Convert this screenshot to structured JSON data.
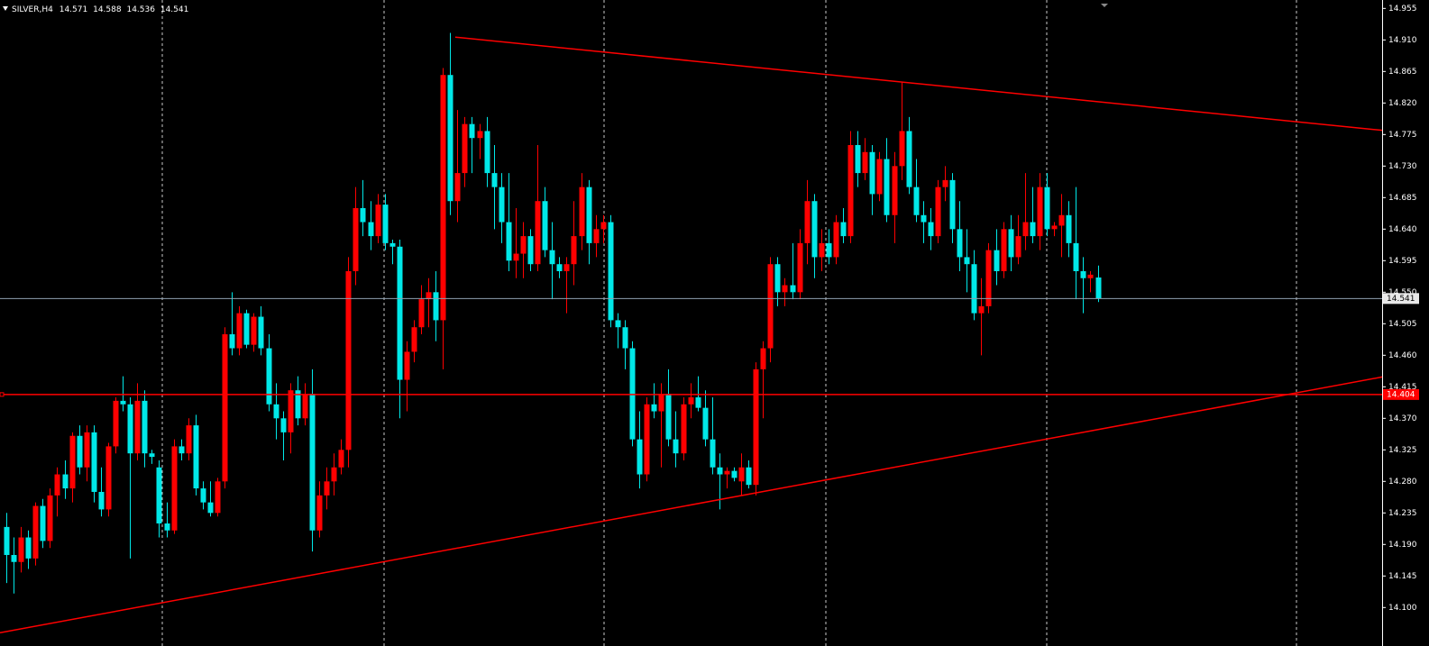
{
  "chart_data": {
    "type": "candlestick",
    "title": "SILVER,H4",
    "bull_color": "#ff0000",
    "bear_color": "#00e8e8",
    "line_color": "#ff0000",
    "ylim": [
      14.055,
      14.967
    ],
    "yticks": [
      14.955,
      {
        "value": 14.91,
        "label": "14.910"
      },
      14.865,
      {
        "value": 14.82,
        "label": "14.820"
      },
      14.775,
      {
        "value": 14.73,
        "label": "14.730"
      },
      14.685,
      {
        "value": 14.64,
        "label": "14.640"
      },
      14.595,
      {
        "value": 14.55,
        "label": "14.550"
      },
      14.505,
      {
        "value": 14.46,
        "label": "14.460"
      },
      14.415,
      {
        "value": 14.37,
        "label": "14.370"
      },
      14.325,
      {
        "value": 14.28,
        "label": "14.280"
      },
      14.235,
      {
        "value": 14.19,
        "label": "14.190"
      },
      14.145,
      {
        "value": 14.1,
        "label": "14.100"
      }
    ],
    "hline": 14.404,
    "trend_lines": [
      {
        "x": [
          61.7,
          189.1
        ],
        "y": [
          14.914,
          14.781
        ]
      },
      {
        "x": [
          -0.87,
          189.1
        ],
        "y": [
          14.064,
          14.429
        ]
      }
    ],
    "ohlc": [
      [
        14.215,
        14.235,
        14.135,
        14.175
      ],
      [
        14.175,
        14.2,
        14.12,
        14.165
      ],
      [
        14.165,
        14.215,
        14.15,
        14.2
      ],
      [
        14.2,
        14.21,
        14.155,
        14.17
      ],
      [
        14.17,
        14.25,
        14.16,
        14.245
      ],
      [
        14.245,
        14.255,
        14.185,
        14.195
      ],
      [
        14.195,
        14.27,
        14.185,
        14.26
      ],
      [
        14.26,
        14.3,
        14.23,
        14.29
      ],
      [
        14.29,
        14.31,
        14.255,
        14.27
      ],
      [
        14.27,
        14.35,
        14.25,
        14.345
      ],
      [
        14.345,
        14.36,
        14.29,
        14.3
      ],
      [
        14.3,
        14.36,
        14.28,
        14.35
      ],
      [
        14.35,
        14.36,
        14.25,
        14.265
      ],
      [
        14.265,
        14.3,
        14.23,
        14.24
      ],
      [
        14.24,
        14.335,
        14.23,
        14.33
      ],
      [
        14.33,
        14.4,
        14.32,
        14.395
      ],
      [
        14.395,
        14.43,
        14.38,
        14.39
      ],
      [
        14.39,
        14.4,
        14.17,
        14.32
      ],
      [
        14.32,
        14.42,
        14.31,
        14.395
      ],
      [
        14.395,
        14.41,
        14.3,
        14.32
      ],
      [
        14.32,
        14.325,
        14.305,
        14.315
      ],
      [
        14.3,
        14.31,
        14.2,
        14.22
      ],
      [
        14.22,
        14.25,
        14.2,
        14.21
      ],
      [
        14.21,
        14.34,
        14.205,
        14.33
      ],
      [
        14.33,
        14.34,
        14.31,
        14.32
      ],
      [
        14.32,
        14.37,
        14.31,
        14.36
      ],
      [
        14.36,
        14.375,
        14.26,
        14.27
      ],
      [
        14.27,
        14.28,
        14.24,
        14.25
      ],
      [
        14.25,
        14.28,
        14.23,
        14.235
      ],
      [
        14.235,
        14.285,
        14.23,
        14.28
      ],
      [
        14.28,
        14.5,
        14.27,
        14.49
      ],
      [
        14.49,
        14.55,
        14.46,
        14.47
      ],
      [
        14.47,
        14.53,
        14.46,
        14.52
      ],
      [
        14.52,
        14.525,
        14.47,
        14.475
      ],
      [
        14.475,
        14.52,
        14.465,
        14.515
      ],
      [
        14.515,
        14.53,
        14.46,
        14.47
      ],
      [
        14.47,
        14.49,
        14.38,
        14.39
      ],
      [
        14.39,
        14.42,
        14.34,
        14.37
      ],
      [
        14.37,
        14.38,
        14.31,
        14.35
      ],
      [
        14.35,
        14.42,
        14.32,
        14.41
      ],
      [
        14.41,
        14.43,
        14.36,
        14.37
      ],
      [
        14.37,
        14.42,
        14.36,
        14.405
      ],
      [
        14.405,
        14.44,
        14.18,
        14.21
      ],
      [
        14.21,
        14.28,
        14.2,
        14.26
      ],
      [
        14.26,
        14.3,
        14.24,
        14.28
      ],
      [
        14.28,
        14.32,
        14.26,
        14.3
      ],
      [
        14.3,
        14.34,
        14.29,
        14.325
      ],
      [
        14.325,
        14.6,
        14.3,
        14.58
      ],
      [
        14.58,
        14.7,
        14.56,
        14.67
      ],
      [
        14.67,
        14.71,
        14.63,
        14.65
      ],
      [
        14.65,
        14.68,
        14.61,
        14.63
      ],
      [
        14.63,
        14.69,
        14.62,
        14.675
      ],
      [
        14.675,
        14.69,
        14.61,
        14.62
      ],
      [
        14.62,
        14.625,
        14.59,
        14.615
      ],
      [
        14.615,
        14.625,
        14.37,
        14.425
      ],
      [
        14.425,
        14.48,
        14.38,
        14.465
      ],
      [
        14.465,
        14.51,
        14.45,
        14.5
      ],
      [
        14.5,
        14.56,
        14.49,
        14.54
      ],
      [
        14.54,
        14.57,
        14.5,
        14.55
      ],
      [
        14.55,
        14.58,
        14.48,
        14.51
      ],
      [
        14.51,
        14.87,
        14.44,
        14.86
      ],
      [
        14.86,
        14.92,
        14.66,
        14.68
      ],
      [
        14.68,
        14.81,
        14.65,
        14.72
      ],
      [
        14.72,
        14.8,
        14.7,
        14.79
      ],
      [
        14.79,
        14.8,
        14.72,
        14.77
      ],
      [
        14.77,
        14.79,
        14.74,
        14.78
      ],
      [
        14.78,
        14.8,
        14.7,
        14.72
      ],
      [
        14.72,
        14.76,
        14.64,
        14.7
      ],
      [
        14.7,
        14.72,
        14.62,
        14.65
      ],
      [
        14.65,
        14.72,
        14.58,
        14.595
      ],
      [
        14.595,
        14.67,
        14.57,
        14.605
      ],
      [
        14.605,
        14.65,
        14.57,
        14.63
      ],
      [
        14.63,
        14.64,
        14.58,
        14.59
      ],
      [
        14.59,
        14.76,
        14.58,
        14.68
      ],
      [
        14.68,
        14.7,
        14.6,
        14.61
      ],
      [
        14.61,
        14.65,
        14.54,
        14.59
      ],
      [
        14.59,
        14.6,
        14.57,
        14.58
      ],
      [
        14.58,
        14.6,
        14.52,
        14.59
      ],
      [
        14.59,
        14.68,
        14.56,
        14.63
      ],
      [
        14.63,
        14.72,
        14.61,
        14.7
      ],
      [
        14.7,
        14.71,
        14.59,
        14.62
      ],
      [
        14.62,
        14.66,
        14.6,
        14.64
      ],
      [
        14.64,
        14.66,
        14.62,
        14.65
      ],
      [
        14.65,
        14.66,
        14.5,
        14.51
      ],
      [
        14.51,
        14.52,
        14.47,
        14.5
      ],
      [
        14.5,
        14.51,
        14.44,
        14.47
      ],
      [
        14.47,
        14.48,
        14.33,
        14.34
      ],
      [
        14.34,
        14.38,
        14.27,
        14.29
      ],
      [
        14.29,
        14.4,
        14.28,
        14.39
      ],
      [
        14.39,
        14.42,
        14.37,
        14.38
      ],
      [
        14.38,
        14.42,
        14.3,
        14.405
      ],
      [
        14.405,
        14.44,
        14.33,
        14.34
      ],
      [
        14.34,
        14.38,
        14.3,
        14.32
      ],
      [
        14.32,
        14.4,
        14.31,
        14.39
      ],
      [
        14.39,
        14.42,
        14.37,
        14.4
      ],
      [
        14.4,
        14.43,
        14.38,
        14.385
      ],
      [
        14.385,
        14.41,
        14.33,
        14.34
      ],
      [
        14.34,
        14.4,
        14.29,
        14.3
      ],
      [
        14.3,
        14.32,
        14.24,
        14.29
      ],
      [
        14.29,
        14.3,
        14.27,
        14.295
      ],
      [
        14.295,
        14.3,
        14.28,
        14.285
      ],
      [
        14.28,
        14.32,
        14.26,
        14.3
      ],
      [
        14.3,
        14.31,
        14.27,
        14.275
      ],
      [
        14.275,
        14.45,
        14.26,
        14.44
      ],
      [
        14.44,
        14.48,
        14.37,
        14.47
      ],
      [
        14.47,
        14.6,
        14.45,
        14.59
      ],
      [
        14.59,
        14.6,
        14.53,
        14.55
      ],
      [
        14.55,
        14.57,
        14.53,
        14.56
      ],
      [
        14.56,
        14.62,
        14.54,
        14.55
      ],
      [
        14.55,
        14.64,
        14.54,
        14.62
      ],
      [
        14.62,
        14.71,
        14.59,
        14.68
      ],
      [
        14.68,
        14.69,
        14.57,
        14.6
      ],
      [
        14.6,
        14.64,
        14.58,
        14.62
      ],
      [
        14.62,
        14.64,
        14.59,
        14.6
      ],
      [
        14.6,
        14.66,
        14.59,
        14.65
      ],
      [
        14.65,
        14.67,
        14.62,
        14.63
      ],
      [
        14.63,
        14.78,
        14.62,
        14.76
      ],
      [
        14.76,
        14.78,
        14.7,
        14.72
      ],
      [
        14.72,
        14.77,
        14.71,
        14.75
      ],
      [
        14.75,
        14.76,
        14.66,
        14.69
      ],
      [
        14.69,
        14.75,
        14.68,
        14.74
      ],
      [
        14.74,
        14.77,
        14.65,
        14.66
      ],
      [
        14.66,
        14.75,
        14.62,
        14.73
      ],
      [
        14.73,
        14.85,
        14.71,
        14.78
      ],
      [
        14.78,
        14.8,
        14.69,
        14.7
      ],
      [
        14.7,
        14.74,
        14.65,
        14.66
      ],
      [
        14.66,
        14.68,
        14.62,
        14.65
      ],
      [
        14.65,
        14.67,
        14.61,
        14.63
      ],
      [
        14.63,
        14.71,
        14.62,
        14.7
      ],
      [
        14.7,
        14.73,
        14.68,
        14.71
      ],
      [
        14.71,
        14.72,
        14.62,
        14.64
      ],
      [
        14.64,
        14.68,
        14.58,
        14.6
      ],
      [
        14.6,
        14.64,
        14.55,
        14.59
      ],
      [
        14.59,
        14.61,
        14.51,
        14.52
      ],
      [
        14.52,
        14.57,
        14.46,
        14.53
      ],
      [
        14.53,
        14.62,
        14.52,
        14.61
      ],
      [
        14.61,
        14.64,
        14.56,
        14.58
      ],
      [
        14.58,
        14.65,
        14.57,
        14.64
      ],
      [
        14.64,
        14.66,
        14.58,
        14.6
      ],
      [
        14.6,
        14.66,
        14.59,
        14.63
      ],
      [
        14.63,
        14.72,
        14.61,
        14.65
      ],
      [
        14.65,
        14.7,
        14.62,
        14.63
      ],
      [
        14.63,
        14.72,
        14.61,
        14.7
      ],
      [
        14.7,
        14.72,
        14.63,
        14.64
      ],
      [
        14.64,
        14.65,
        14.63,
        14.645
      ],
      [
        14.645,
        14.69,
        14.6,
        14.66
      ],
      [
        14.66,
        14.68,
        14.6,
        14.62
      ],
      [
        14.62,
        14.7,
        14.54,
        14.58
      ],
      [
        14.58,
        14.6,
        14.52,
        14.57
      ],
      [
        14.57,
        14.58,
        14.55,
        14.575
      ],
      [
        14.571,
        14.588,
        14.536,
        14.541
      ]
    ]
  }
}
